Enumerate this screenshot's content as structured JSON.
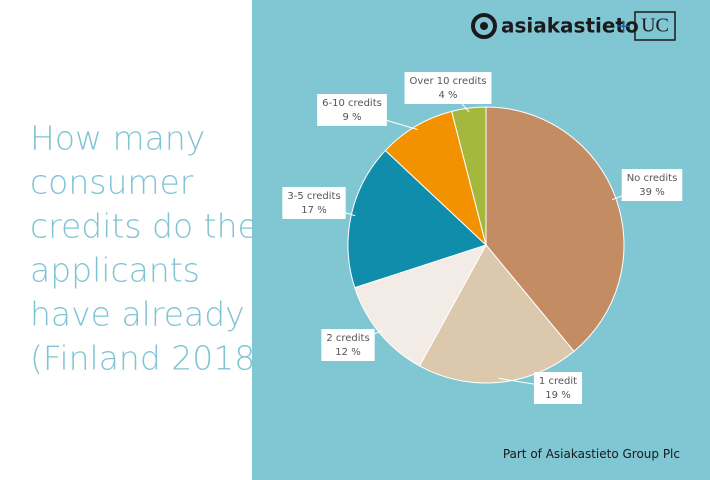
{
  "chart_data": {
    "type": "pie",
    "title_lines": [
      "How many",
      "consumer",
      "credits do the",
      "applicants",
      "have already",
      "(Finland 2018)"
    ],
    "categories": [
      "No credits",
      "1 credit",
      "2 credits",
      "3-5 credits",
      "6-10 credits",
      "Over 10 credits"
    ],
    "values": [
      39,
      19,
      12,
      17,
      9,
      4
    ],
    "value_labels": [
      "39 %",
      "19 %",
      "12 %",
      "17 %",
      "9 %",
      "4 %"
    ],
    "colors": [
      "#c48c62",
      "#dcc8ad",
      "#f3ebe6",
      "#0f8dab",
      "#f39200",
      "#a3b83c"
    ]
  },
  "brand": {
    "name": "asiakastieto",
    "plus": "+",
    "partner": "UC"
  },
  "footer": "Part of Asiakastieto Group Plc"
}
